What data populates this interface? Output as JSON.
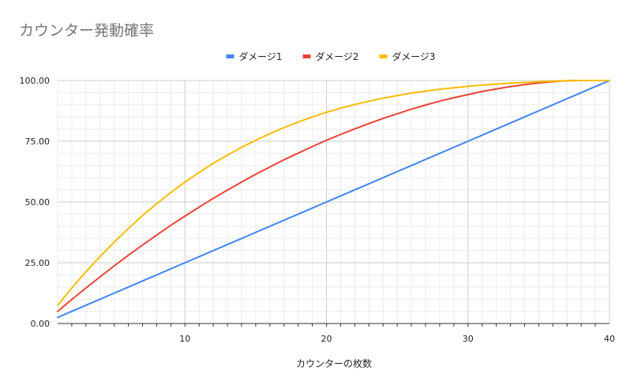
{
  "chart_data": {
    "type": "line",
    "title": "カウンター発動確率",
    "xlabel": "カウンターの枚数",
    "ylabel": "",
    "xlim": [
      1,
      40
    ],
    "ylim": [
      0,
      100
    ],
    "x_ticks": [
      10,
      20,
      30,
      40
    ],
    "y_ticks": [
      "0.00",
      "25.00",
      "50.00",
      "75.00",
      "100.00"
    ],
    "legend_position": "top",
    "grid": true,
    "x": [
      1,
      2,
      3,
      4,
      5,
      6,
      7,
      8,
      9,
      10,
      11,
      12,
      13,
      14,
      15,
      16,
      17,
      18,
      19,
      20,
      21,
      22,
      23,
      24,
      25,
      26,
      27,
      28,
      29,
      30,
      31,
      32,
      33,
      34,
      35,
      36,
      37,
      38,
      39,
      40
    ],
    "series": [
      {
        "name": "ダメージ1",
        "color": "#4285f4",
        "values": [
          2.5,
          5.0,
          7.5,
          10.0,
          12.5,
          15.0,
          17.5,
          20.0,
          22.5,
          25.0,
          27.5,
          30.0,
          32.5,
          35.0,
          37.5,
          40.0,
          42.5,
          45.0,
          47.5,
          50.0,
          52.5,
          55.0,
          57.5,
          60.0,
          62.5,
          65.0,
          67.5,
          70.0,
          72.5,
          75.0,
          77.5,
          80.0,
          82.5,
          85.0,
          87.5,
          90.0,
          92.5,
          95.0,
          97.5,
          100.0
        ]
      },
      {
        "name": "ダメージ2",
        "color": "#ea4335",
        "values": [
          5.0,
          9.9,
          14.6,
          19.2,
          23.7,
          28.1,
          32.3,
          36.4,
          40.4,
          44.2,
          47.9,
          51.5,
          54.9,
          58.2,
          61.4,
          64.4,
          67.4,
          70.1,
          72.8,
          75.4,
          77.8,
          80.1,
          82.3,
          84.4,
          86.3,
          88.2,
          89.9,
          91.5,
          92.9,
          94.2,
          95.5,
          96.5,
          97.5,
          98.3,
          99.0,
          99.5,
          99.9,
          100.0,
          100.0,
          100.0
        ]
      },
      {
        "name": "ダメージ3",
        "color": "#fbbc04",
        "values": [
          7.5,
          14.6,
          21.3,
          27.6,
          33.5,
          39.1,
          44.4,
          49.3,
          53.9,
          58.2,
          62.2,
          65.9,
          69.3,
          72.5,
          75.4,
          78.1,
          80.6,
          82.9,
          85.0,
          86.9,
          88.6,
          90.1,
          91.5,
          92.7,
          93.8,
          94.8,
          95.6,
          96.4,
          97.0,
          97.6,
          98.1,
          98.5,
          98.9,
          99.2,
          99.5,
          99.7,
          99.9,
          100.0,
          100.0,
          100.0
        ]
      }
    ]
  }
}
